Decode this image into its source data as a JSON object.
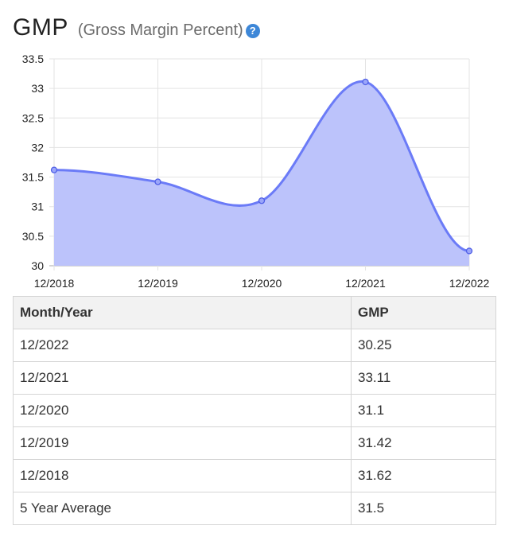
{
  "header": {
    "title": "GMP",
    "subtitle": "(Gross Margin Percent)",
    "help_icon": "question-mark-icon"
  },
  "chart_data": {
    "type": "area",
    "title": "",
    "xlabel": "",
    "ylabel": "",
    "categories": [
      "12/2018",
      "12/2019",
      "12/2020",
      "12/2021",
      "12/2022"
    ],
    "values": [
      31.62,
      31.42,
      31.1,
      33.11,
      30.25
    ],
    "ylim": [
      30,
      33.5
    ],
    "yticks": [
      "30",
      "30.5",
      "31",
      "31.5",
      "32",
      "32.5",
      "33",
      "33.5"
    ],
    "grid": true,
    "line_color": "#6b7bf7",
    "fill_color": "#bcc3fb"
  },
  "table": {
    "headers": [
      "Month/Year",
      "GMP"
    ],
    "rows": [
      [
        "12/2022",
        "30.25"
      ],
      [
        "12/2021",
        "33.11"
      ],
      [
        "12/2020",
        "31.1"
      ],
      [
        "12/2019",
        "31.42"
      ],
      [
        "12/2018",
        "31.62"
      ],
      [
        "5 Year Average",
        "31.5"
      ]
    ]
  }
}
